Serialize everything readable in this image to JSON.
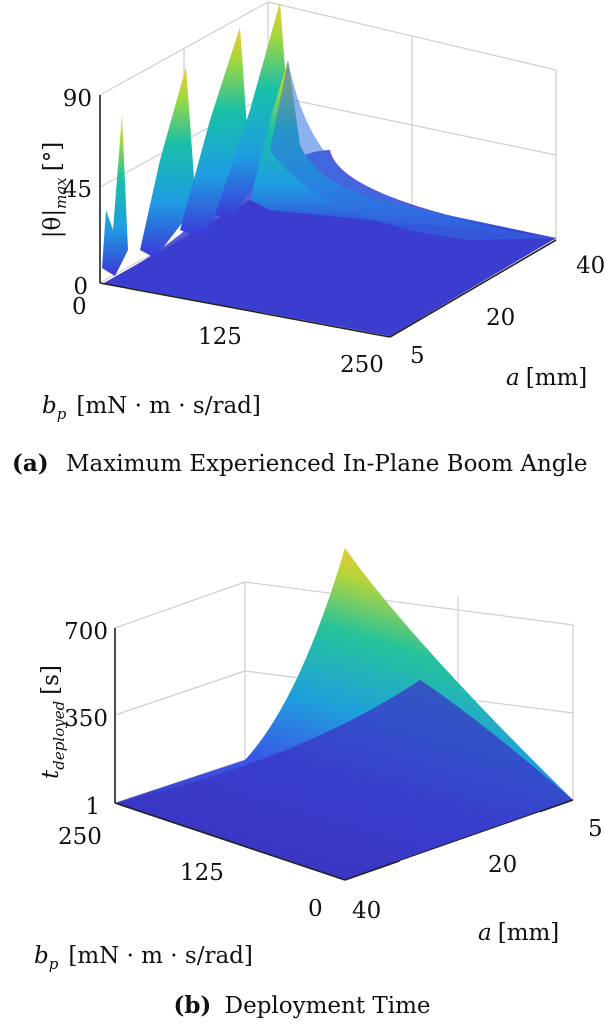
{
  "figures": [
    {
      "caption_tag": "(a)",
      "caption_text": "Maximum Experienced In-Plane Boom Angle",
      "zlabel_main": "|θ|",
      "zlabel_sub": "max",
      "zlabel_unit": "[°]",
      "xlabel_main": "b",
      "xlabel_sub": "p",
      "xlabel_unit": "[mN · m · s/rad]",
      "ylabel_main": "a",
      "ylabel_unit": "[mm]",
      "ticks_z": [
        "90",
        "45",
        "0"
      ],
      "ticks_x": [
        "0",
        "125",
        "250"
      ],
      "ticks_y": [
        "40",
        "20",
        "5"
      ]
    },
    {
      "caption_tag": "(b)",
      "caption_text": "Deployment Time",
      "zlabel_main": "t",
      "zlabel_sub": "deployed",
      "zlabel_unit": "[s]",
      "xlabel_main": "b",
      "xlabel_sub": "p",
      "xlabel_unit": "[mN · m · s/rad]",
      "ylabel_main": "a",
      "ylabel_unit": "[mm]",
      "ticks_z": [
        "700",
        "350",
        "1"
      ],
      "ticks_x": [
        "250",
        "125",
        "0"
      ],
      "ticks_y": [
        "5",
        "20",
        "40"
      ]
    }
  ],
  "chart_data": [
    {
      "type": "surface",
      "title": "",
      "xlabel": "b_p [mN · m · s/rad]",
      "ylabel": "a [mm]",
      "zlabel": "|θ|_max [°]",
      "xlim": [
        0,
        250
      ],
      "ylim": [
        5,
        40
      ],
      "zlim": [
        0,
        90
      ],
      "xticks": [
        0,
        125,
        250
      ],
      "yticks": [
        5,
        20,
        40
      ],
      "zticks": [
        0,
        45,
        90
      ],
      "colormap": "parula",
      "grid": true,
      "description_of_shape": "near-zero plateau for most of the domain; sharp peaks near b_p = 0 that grow with a",
      "peaks": [
        {
          "b_p": 0,
          "a": 5,
          "z": 60
        },
        {
          "b_p": 0,
          "a": 12,
          "z": 68
        },
        {
          "b_p": 0,
          "a": 20,
          "z": 80
        },
        {
          "b_p": 0,
          "a": 28,
          "z": 88
        },
        {
          "b_p": 0,
          "a": 35,
          "z": 95
        },
        {
          "b_p": 0,
          "a": 40,
          "z": 78
        }
      ],
      "plateau_z": 0
    },
    {
      "type": "surface",
      "title": "",
      "xlabel": "b_p [mN · m · s/rad]",
      "ylabel": "a [mm]",
      "zlabel": "t_deployed [s]",
      "xlim": [
        0,
        250
      ],
      "ylim": [
        5,
        40
      ],
      "zlim": [
        1,
        700
      ],
      "xticks": [
        0,
        125,
        250
      ],
      "yticks": [
        5,
        20,
        40
      ],
      "zticks": [
        1,
        350,
        700
      ],
      "colormap": "parula",
      "grid": true,
      "corner_values": [
        {
          "b_p": 0,
          "a": 5,
          "z": 1
        },
        {
          "b_p": 0,
          "a": 40,
          "z": 1
        },
        {
          "b_p": 250,
          "a": 40,
          "z": 1
        },
        {
          "b_p": 250,
          "a": 5,
          "z": 760
        }
      ]
    }
  ]
}
